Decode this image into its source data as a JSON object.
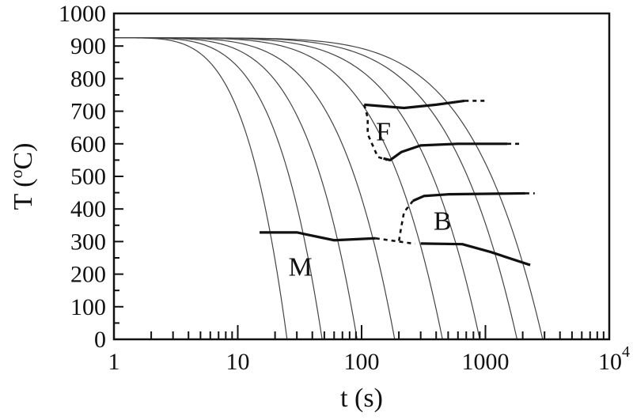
{
  "chart_data": {
    "type": "line",
    "x_scale": "log",
    "xlim": [
      1,
      10000
    ],
    "ylim": [
      0,
      1000
    ],
    "xlabel": "t (s)",
    "ylabel": "T (°C)",
    "ylabel_parts": {
      "pre": "T (",
      "sup": "o",
      "post": "C)"
    },
    "xticks": [
      {
        "value": 1,
        "label": "1"
      },
      {
        "value": 10,
        "label": "10"
      },
      {
        "value": 100,
        "label": "100"
      },
      {
        "value": 1000,
        "label": "1000"
      },
      {
        "value": 10000,
        "base": "10",
        "exp": "4"
      }
    ],
    "yticks": [
      0,
      100,
      200,
      300,
      400,
      500,
      600,
      700,
      800,
      900,
      1000
    ],
    "grid": false,
    "cooling_start_temperature": 925,
    "cooling_curves": [
      {
        "end_time": 25
      },
      {
        "end_time": 48
      },
      {
        "end_time": 92
      },
      {
        "end_time": 185
      },
      {
        "end_time": 450
      },
      {
        "end_time": 900
      },
      {
        "end_time": 1800
      },
      {
        "end_time": 2900
      }
    ],
    "transformation_lines": [
      {
        "style": "solid",
        "points": [
          [
            105,
            720
          ],
          [
            220,
            710
          ],
          [
            400,
            720
          ],
          [
            680,
            732
          ]
        ]
      },
      {
        "style": "dashed",
        "points": [
          [
            680,
            732
          ],
          [
            1000,
            732
          ]
        ]
      },
      {
        "style": "dashed",
        "points": [
          [
            105,
            720
          ],
          [
            112,
            680
          ],
          [
            112,
            630
          ],
          [
            135,
            560
          ],
          [
            160,
            550
          ]
        ]
      },
      {
        "style": "solid",
        "points": [
          [
            150,
            555
          ],
          [
            170,
            550
          ],
          [
            210,
            575
          ],
          [
            300,
            595
          ],
          [
            600,
            600
          ],
          [
            1500,
            600
          ]
        ]
      },
      {
        "style": "dashed",
        "points": [
          [
            1500,
            600
          ],
          [
            1900,
            600
          ]
        ]
      },
      {
        "style": "solid",
        "points": [
          [
            260,
            425
          ],
          [
            320,
            440
          ],
          [
            500,
            445
          ],
          [
            2100,
            448
          ]
        ]
      },
      {
        "style": "dashed",
        "points": [
          [
            2100,
            448
          ],
          [
            2500,
            448
          ]
        ]
      },
      {
        "style": "dashed",
        "points": [
          [
            260,
            425
          ],
          [
            220,
            390
          ],
          [
            208,
            340
          ],
          [
            200,
            300
          ]
        ]
      },
      {
        "style": "solid",
        "points": [
          [
            15,
            328
          ],
          [
            30,
            328
          ],
          [
            60,
            304
          ],
          [
            130,
            310
          ]
        ]
      },
      {
        "style": "dashed",
        "points": [
          [
            130,
            310
          ],
          [
            270,
            293
          ]
        ]
      },
      {
        "style": "solid",
        "points": [
          [
            300,
            294
          ],
          [
            650,
            292
          ],
          [
            1100,
            268
          ],
          [
            2300,
            228
          ]
        ]
      }
    ],
    "annotations": [
      {
        "text": "F",
        "x": 150,
        "y": 640
      },
      {
        "text": "B",
        "x": 450,
        "y": 365
      },
      {
        "text": "M",
        "x": 32,
        "y": 225
      }
    ]
  }
}
